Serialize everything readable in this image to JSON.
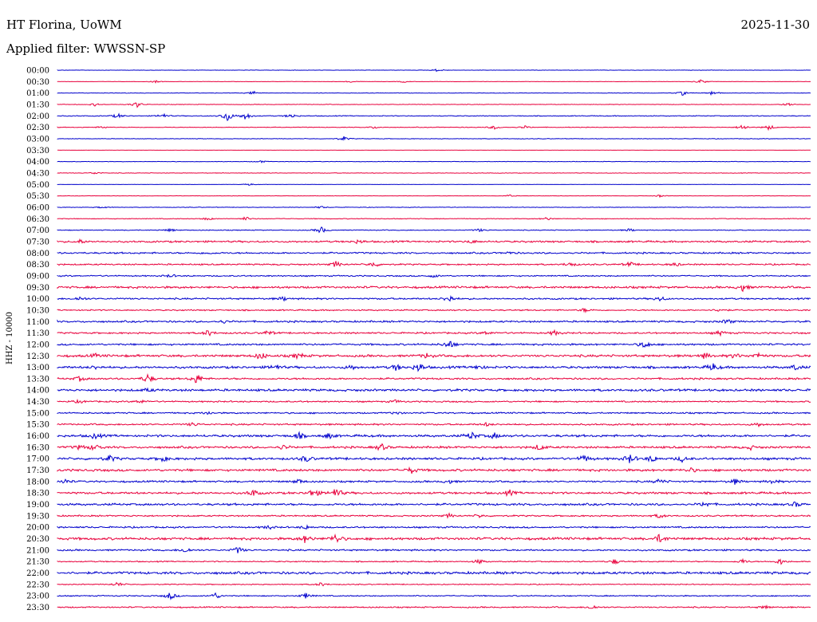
{
  "header": {
    "station": "HT Florina, UoWM",
    "date": "2025-11-30",
    "filter": "Applied filter: WWSSN-SP"
  },
  "chart_data": {
    "type": "line",
    "ylabel": "HHZ - 10000",
    "rows": [
      "00:00",
      "00:30",
      "01:00",
      "01:30",
      "02:00",
      "02:30",
      "03:00",
      "03:30",
      "04:00",
      "04:30",
      "05:00",
      "05:30",
      "06:00",
      "06:30",
      "07:00",
      "07:30",
      "08:00",
      "08:30",
      "09:00",
      "09:30",
      "10:00",
      "10:30",
      "11:00",
      "11:30",
      "12:00",
      "12:30",
      "13:00",
      "13:30",
      "14:00",
      "14:30",
      "15:00",
      "15:30",
      "16:00",
      "16:30",
      "17:00",
      "17:30",
      "18:00",
      "18:30",
      "19:00",
      "19:30",
      "20:00",
      "20:30",
      "21:00",
      "21:30",
      "22:00",
      "22:30",
      "23:00",
      "23:30"
    ],
    "series_colors": [
      "#0000cc",
      "#e8003c"
    ],
    "noise_levels": [
      0.25,
      0.2,
      0.3,
      0.35,
      0.5,
      0.4,
      0.35,
      0.1,
      0.3,
      0.35,
      0.15,
      0.2,
      0.35,
      0.45,
      0.5,
      1.1,
      1.0,
      0.9,
      0.8,
      1.3,
      1.0,
      0.8,
      1.1,
      1.0,
      1.1,
      1.4,
      1.4,
      1.1,
      1.4,
      0.9,
      0.9,
      1.0,
      1.4,
      1.3,
      1.4,
      1.4,
      1.1,
      1.3,
      1.3,
      0.9,
      1.0,
      1.5,
      1.0,
      0.7,
      1.5,
      0.6,
      0.7,
      0.8
    ],
    "events": [
      [
        [
          0.505,
          2.0
        ]
      ],
      [
        [
          0.13,
          1.5
        ],
        [
          0.39,
          1.2
        ],
        [
          0.46,
          1.2
        ],
        [
          0.855,
          3.0
        ]
      ],
      [
        [
          0.26,
          2.5
        ],
        [
          0.83,
          2.8
        ],
        [
          0.87,
          3.5
        ]
      ],
      [
        [
          0.05,
          1.8
        ],
        [
          0.105,
          4.0
        ],
        [
          0.97,
          2.5
        ]
      ],
      [
        [
          0.08,
          3.0
        ],
        [
          0.14,
          3.0
        ],
        [
          0.225,
          8.0
        ],
        [
          0.25,
          5.0
        ],
        [
          0.31,
          3.0
        ]
      ],
      [
        [
          0.06,
          1.5
        ],
        [
          0.42,
          1.5
        ],
        [
          0.58,
          2.5
        ],
        [
          0.62,
          2.0
        ],
        [
          0.91,
          4.0
        ],
        [
          0.945,
          3.5
        ]
      ],
      [
        [
          0.38,
          3.0
        ]
      ],
      [],
      [
        [
          0.27,
          1.5
        ]
      ],
      [
        [
          0.05,
          1.5
        ]
      ],
      [
        [
          0.255,
          1.5
        ]
      ],
      [
        [
          0.6,
          1.5
        ],
        [
          0.8,
          1.5
        ]
      ],
      [
        [
          0.06,
          1.5
        ],
        [
          0.35,
          1.5
        ]
      ],
      [
        [
          0.2,
          2.0
        ],
        [
          0.25,
          2.5
        ],
        [
          0.65,
          2.0
        ]
      ],
      [
        [
          0.15,
          2.0
        ],
        [
          0.35,
          4.5
        ],
        [
          0.56,
          2.0
        ],
        [
          0.76,
          2.0
        ]
      ],
      [
        [
          0.03,
          2.5
        ],
        [
          0.4,
          2.5
        ],
        [
          0.55,
          2.0
        ]
      ],
      [
        [
          0.2,
          1.5
        ],
        [
          0.6,
          1.5
        ]
      ],
      [
        [
          0.37,
          4.0
        ],
        [
          0.42,
          3.5
        ],
        [
          0.68,
          3.0
        ],
        [
          0.76,
          3.0
        ],
        [
          0.82,
          2.5
        ]
      ],
      [
        [
          0.15,
          2.0
        ],
        [
          0.5,
          2.0
        ]
      ],
      [
        [
          0.91,
          4.5
        ]
      ],
      [
        [
          0.03,
          2.5
        ],
        [
          0.3,
          2.5
        ],
        [
          0.52,
          5.0
        ],
        [
          0.8,
          3.0
        ]
      ],
      [
        [
          0.7,
          2.5
        ],
        [
          0.88,
          2.5
        ]
      ],
      [
        [
          0.22,
          2.0
        ],
        [
          0.89,
          3.0
        ]
      ],
      [
        [
          0.2,
          4.0
        ],
        [
          0.28,
          3.0
        ],
        [
          0.57,
          2.5
        ],
        [
          0.66,
          3.0
        ],
        [
          0.88,
          3.0
        ]
      ],
      [
        [
          0.52,
          6.0
        ],
        [
          0.78,
          5.0
        ]
      ],
      [
        [
          0.05,
          2.0
        ],
        [
          0.27,
          5.0
        ],
        [
          0.32,
          3.5
        ],
        [
          0.49,
          3.0
        ],
        [
          0.86,
          3.5
        ],
        [
          0.9,
          3.0
        ],
        [
          0.93,
          3.5
        ]
      ],
      [
        [
          0.05,
          2.0
        ],
        [
          0.29,
          4.0
        ],
        [
          0.39,
          3.0
        ],
        [
          0.45,
          4.0
        ],
        [
          0.48,
          6.0
        ],
        [
          0.56,
          3.0
        ],
        [
          0.87,
          5.0
        ],
        [
          0.98,
          3.5
        ]
      ],
      [
        [
          0.03,
          3.0
        ],
        [
          0.12,
          6.0
        ],
        [
          0.185,
          7.0
        ]
      ],
      [
        [
          0.12,
          1.8
        ]
      ],
      [
        [
          0.03,
          2.0
        ],
        [
          0.11,
          2.5
        ],
        [
          0.45,
          2.0
        ]
      ],
      [
        [
          0.2,
          2.0
        ],
        [
          0.45,
          2.0
        ]
      ],
      [
        [
          0.18,
          2.5
        ],
        [
          0.57,
          2.0
        ],
        [
          0.93,
          2.5
        ]
      ],
      [
        [
          0.05,
          3.5
        ],
        [
          0.32,
          4.0
        ],
        [
          0.36,
          3.5
        ],
        [
          0.55,
          5.0
        ],
        [
          0.58,
          3.5
        ]
      ],
      [
        [
          0.03,
          3.0
        ],
        [
          0.05,
          4.5
        ],
        [
          0.3,
          3.0
        ],
        [
          0.43,
          4.5
        ],
        [
          0.64,
          4.0
        ],
        [
          0.92,
          2.5
        ]
      ],
      [
        [
          0.07,
          4.0
        ],
        [
          0.14,
          3.5
        ],
        [
          0.33,
          4.0
        ],
        [
          0.7,
          4.5
        ],
        [
          0.76,
          5.5
        ],
        [
          0.79,
          4.5
        ],
        [
          0.83,
          3.5
        ]
      ],
      [
        [
          0.47,
          4.0
        ],
        [
          0.84,
          3.0
        ]
      ],
      [
        [
          0.01,
          3.0
        ],
        [
          0.32,
          3.0
        ],
        [
          0.52,
          2.5
        ],
        [
          0.8,
          3.5
        ],
        [
          0.9,
          3.5
        ],
        [
          0.95,
          3.0
        ]
      ],
      [
        [
          0.26,
          4.5
        ],
        [
          0.34,
          6.0
        ],
        [
          0.37,
          7.0
        ],
        [
          0.6,
          3.5
        ]
      ],
      [
        [
          0.86,
          3.5
        ],
        [
          0.98,
          3.0
        ]
      ],
      [
        [
          0.52,
          2.5
        ],
        [
          0.56,
          2.0
        ],
        [
          0.8,
          3.0
        ]
      ],
      [
        [
          0.28,
          2.5
        ],
        [
          0.33,
          2.5
        ]
      ],
      [
        [
          0.33,
          5.5
        ],
        [
          0.37,
          6.0
        ],
        [
          0.8,
          5.5
        ]
      ],
      [
        [
          0.17,
          3.5
        ],
        [
          0.24,
          4.5
        ]
      ],
      [
        [
          0.56,
          3.0
        ],
        [
          0.74,
          3.5
        ],
        [
          0.91,
          3.0
        ],
        [
          0.96,
          4.0
        ]
      ],
      [],
      [
        [
          0.08,
          3.0
        ],
        [
          0.35,
          2.5
        ]
      ],
      [
        [
          0.15,
          5.0
        ],
        [
          0.21,
          4.0
        ],
        [
          0.33,
          3.5
        ]
      ],
      [
        [
          0.71,
          3.0
        ],
        [
          0.94,
          2.5
        ]
      ]
    ]
  }
}
